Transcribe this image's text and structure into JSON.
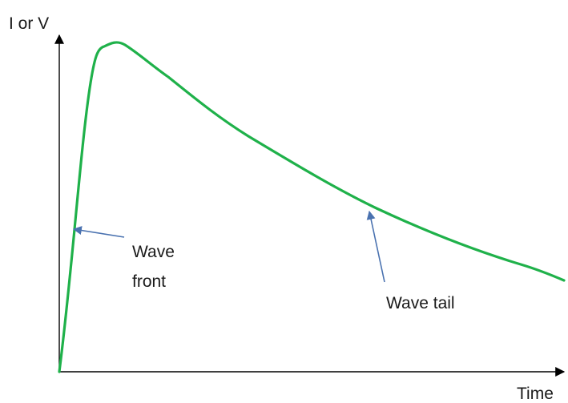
{
  "axes": {
    "y_label": "I or V",
    "x_label": "Time"
  },
  "annotations": {
    "wave_front_line1": "Wave",
    "wave_front_line2": "front",
    "wave_tail": "Wave tail"
  },
  "colors": {
    "curve": "#1fb14a",
    "arrow": "#4a72b0",
    "axis": "#000000"
  }
}
